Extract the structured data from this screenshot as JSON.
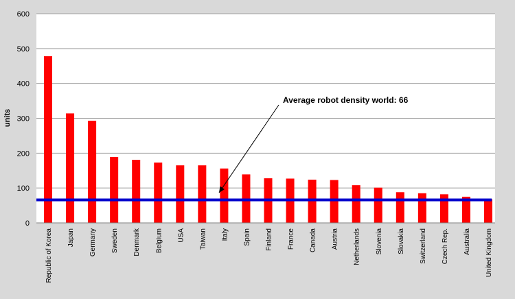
{
  "chart_data": {
    "type": "bar",
    "title": "",
    "xlabel": "",
    "ylabel": "units",
    "ylim": [
      0,
      600
    ],
    "yticks": [
      0,
      100,
      200,
      300,
      400,
      500,
      600
    ],
    "grid": true,
    "categories": [
      "Republic of Korea",
      "Japan",
      "Germany",
      "Sweden",
      "Denmark",
      "Belgium",
      "USA",
      "Taiwan",
      "Italy",
      "Spain",
      "Finland",
      "France",
      "Canada",
      "Austria",
      "Netherlands",
      "Slovenia",
      "Slovakia",
      "Switzerland",
      "Czech Rep.",
      "Australia",
      "United Kingdom"
    ],
    "values": [
      478,
      314,
      293,
      189,
      181,
      173,
      165,
      165,
      156,
      139,
      128,
      127,
      124,
      123,
      108,
      101,
      88,
      85,
      82,
      75,
      68
    ],
    "bar_color": "#ff0000",
    "reference_line": {
      "value": 66,
      "color": "#0000cc"
    },
    "annotation": {
      "text": "Average robot density world: 66",
      "points_to_category": "Italy"
    }
  }
}
